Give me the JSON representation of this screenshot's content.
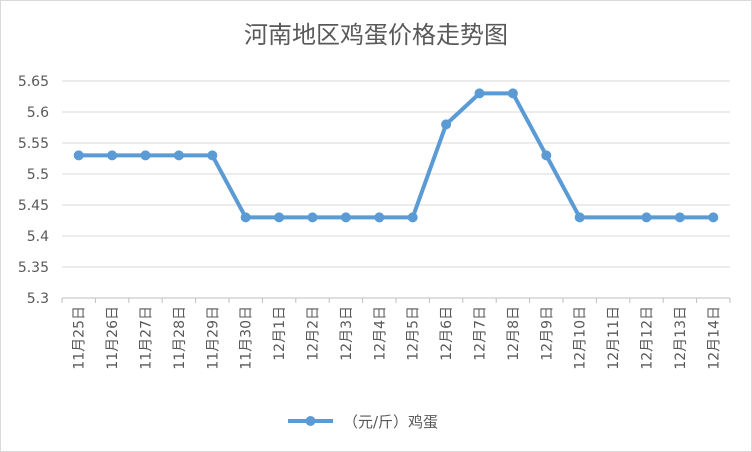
{
  "chart_data": {
    "type": "line",
    "title": "河南地区鸡蛋价格走势图",
    "xlabel": "",
    "ylabel": "",
    "categories": [
      "11月25日",
      "11月26日",
      "11月27日",
      "11月28日",
      "11月29日",
      "11月30日",
      "12月1日",
      "12月2日",
      "12月3日",
      "12月4日",
      "12月5日",
      "12月6日",
      "12月7日",
      "12月8日",
      "12月9日",
      "12月10日",
      "12月11日",
      "12月12日",
      "12月13日",
      "12月14日"
    ],
    "series": [
      {
        "name": "（元/斤）鸡蛋",
        "color": "#5b9bd5",
        "values": [
          5.53,
          5.53,
          5.53,
          5.53,
          5.53,
          5.43,
          5.43,
          5.43,
          5.43,
          5.43,
          5.43,
          5.58,
          5.63,
          5.63,
          5.53,
          5.43,
          null,
          5.43,
          5.43,
          5.43
        ]
      }
    ],
    "ylim": [
      5.3,
      5.65
    ],
    "yticks": [
      "5.3",
      "5.35",
      "5.4",
      "5.45",
      "5.5",
      "5.55",
      "5.6",
      "5.65"
    ],
    "grid": true,
    "legend_position": "bottom"
  }
}
